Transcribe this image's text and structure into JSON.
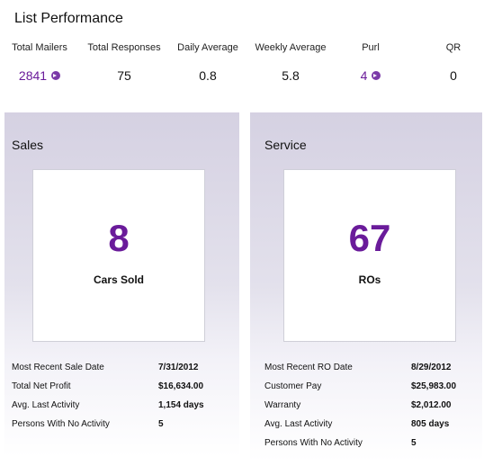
{
  "title": "List Performance",
  "stats": [
    {
      "label": "Total Mailers",
      "value": "2841",
      "link": true
    },
    {
      "label": "Total Responses",
      "value": "75",
      "link": false
    },
    {
      "label": "Daily Average",
      "value": "0.8",
      "link": false
    },
    {
      "label": "Weekly Average",
      "value": "5.8",
      "link": false
    },
    {
      "label": "Purl",
      "value": "4",
      "link": true
    },
    {
      "label": "QR",
      "value": "0",
      "link": false
    }
  ],
  "sales": {
    "title": "Sales",
    "count": "8",
    "caption": "Cars Sold",
    "rows": [
      {
        "label": "Most Recent Sale Date",
        "value": "7/31/2012"
      },
      {
        "label": "Total Net Profit",
        "value": "$16,634.00"
      },
      {
        "label": "Avg. Last Activity",
        "value": "1,154 days"
      },
      {
        "label": "Persons With No Activity",
        "value": "5"
      }
    ]
  },
  "service": {
    "title": "Service",
    "count": "67",
    "caption": "ROs",
    "rows": [
      {
        "label": "Most Recent RO Date",
        "value": "8/29/2012"
      },
      {
        "label": "Customer Pay",
        "value": "$25,983.00"
      },
      {
        "label": "Warranty",
        "value": "$2,012.00"
      },
      {
        "label": "Avg. Last Activity",
        "value": "805 days"
      },
      {
        "label": "Persons With No Activity",
        "value": "5"
      }
    ]
  }
}
